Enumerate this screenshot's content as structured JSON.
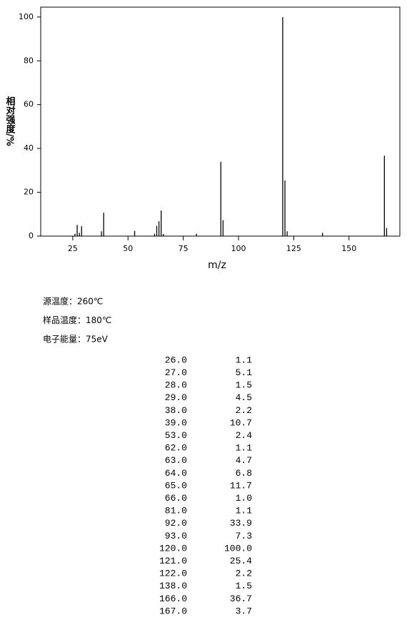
{
  "chart_data": {
    "type": "stem",
    "y_label": "相对强度/%",
    "x_label": "m/z",
    "x": [
      26,
      27,
      28,
      29,
      38,
      39,
      53,
      62,
      63,
      64,
      65,
      66,
      81,
      92,
      93,
      120,
      121,
      122,
      138,
      166,
      167
    ],
    "values": [
      1.1,
      5.1,
      1.5,
      4.5,
      2.2,
      10.7,
      2.4,
      1.1,
      4.7,
      6.8,
      11.7,
      1.0,
      1.1,
      33.9,
      7.3,
      100.0,
      25.4,
      2.2,
      1.5,
      36.7,
      3.7
    ],
    "color": "#000000",
    "xlim": [
      10.5,
      173
    ],
    "xticks": [
      25,
      50,
      75,
      100,
      125,
      150
    ],
    "ylim": [
      0,
      104.5
    ],
    "yticks": [
      0,
      20,
      40,
      60,
      80,
      100
    ]
  },
  "conditions": [
    "源温度：260℃",
    "样品温度：180℃",
    "电子能量：75eV"
  ],
  "table": {
    "rows": [
      [
        "26.0",
        "1.1"
      ],
      [
        "27.0",
        "5.1"
      ],
      [
        "28.0",
        "1.5"
      ],
      [
        "29.0",
        "4.5"
      ],
      [
        "38.0",
        "2.2"
      ],
      [
        "39.0",
        "10.7"
      ],
      [
        "53.0",
        "2.4"
      ],
      [
        "62.0",
        "1.1"
      ],
      [
        "63.0",
        "4.7"
      ],
      [
        "64.0",
        "6.8"
      ],
      [
        "65.0",
        "11.7"
      ],
      [
        "66.0",
        "1.0"
      ],
      [
        "81.0",
        "1.1"
      ],
      [
        "92.0",
        "33.9"
      ],
      [
        "93.0",
        "7.3"
      ],
      [
        "120.0",
        "100.0"
      ],
      [
        "121.0",
        "25.4"
      ],
      [
        "122.0",
        "2.2"
      ],
      [
        "138.0",
        "1.5"
      ],
      [
        "166.0",
        "36.7"
      ],
      [
        "167.0",
        "3.7"
      ]
    ]
  }
}
